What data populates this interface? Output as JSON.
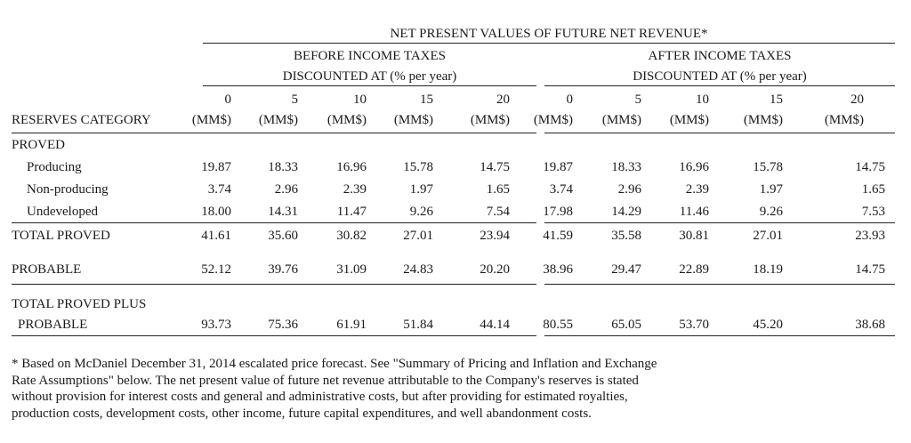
{
  "title": "NET PRESENT VALUES OF FUTURE NET REVENUE*",
  "groups": [
    {
      "line1": "BEFORE INCOME TAXES",
      "line2": "DISCOUNTED AT (% per year)"
    },
    {
      "line1": "AFTER INCOME TAXES",
      "line2": "DISCOUNTED AT (% per year)"
    }
  ],
  "category_header": "RESERVES CATEGORY",
  "rates": [
    "0",
    "5",
    "10",
    "15",
    "20",
    "0",
    "5",
    "10",
    "15",
    "20"
  ],
  "unit": "(MM$)",
  "proved_label": "PROVED",
  "rows": [
    {
      "label": "Producing",
      "values": [
        "19.87",
        "18.33",
        "16.96",
        "15.78",
        "14.75",
        "19.87",
        "18.33",
        "16.96",
        "15.78",
        "14.75"
      ]
    },
    {
      "label": "Non-producing",
      "values": [
        "3.74",
        "2.96",
        "2.39",
        "1.97",
        "1.65",
        "3.74",
        "2.96",
        "2.39",
        "1.97",
        "1.65"
      ]
    },
    {
      "label": "Undeveloped",
      "values": [
        "18.00",
        "14.31",
        "11.47",
        "9.26",
        "7.54",
        "17.98",
        "14.29",
        "11.46",
        "9.26",
        "7.53"
      ]
    },
    {
      "label": "TOTAL PROVED",
      "values": [
        "41.61",
        "35.60",
        "30.82",
        "27.01",
        "23.94",
        "41.59",
        "35.58",
        "30.81",
        "27.01",
        "23.93"
      ]
    },
    {
      "label": "PROBABLE",
      "values": [
        "52.12",
        "39.76",
        "31.09",
        "24.83",
        "20.20",
        "38.96",
        "29.47",
        "22.89",
        "18.19",
        "14.75"
      ]
    },
    {
      "label": "TOTAL PROVED PLUS",
      "label2": "PROBABLE",
      "values": [
        "93.73",
        "75.36",
        "61.91",
        "51.84",
        "44.14",
        "80.55",
        "65.05",
        "53.70",
        "45.20",
        "38.68"
      ]
    }
  ],
  "footnote": [
    "* Based on McDaniel December 31, 2014 escalated price forecast. See \"Summary of Pricing and Inflation and Exchange",
    "Rate Assumptions\" below. The net present value of future net revenue attributable to the Company's reserves is stated",
    "without provision for interest costs and general and administrative costs, but after providing for estimated royalties,",
    "production costs, development costs, other income, future capital expenditures, and well abandonment costs."
  ]
}
